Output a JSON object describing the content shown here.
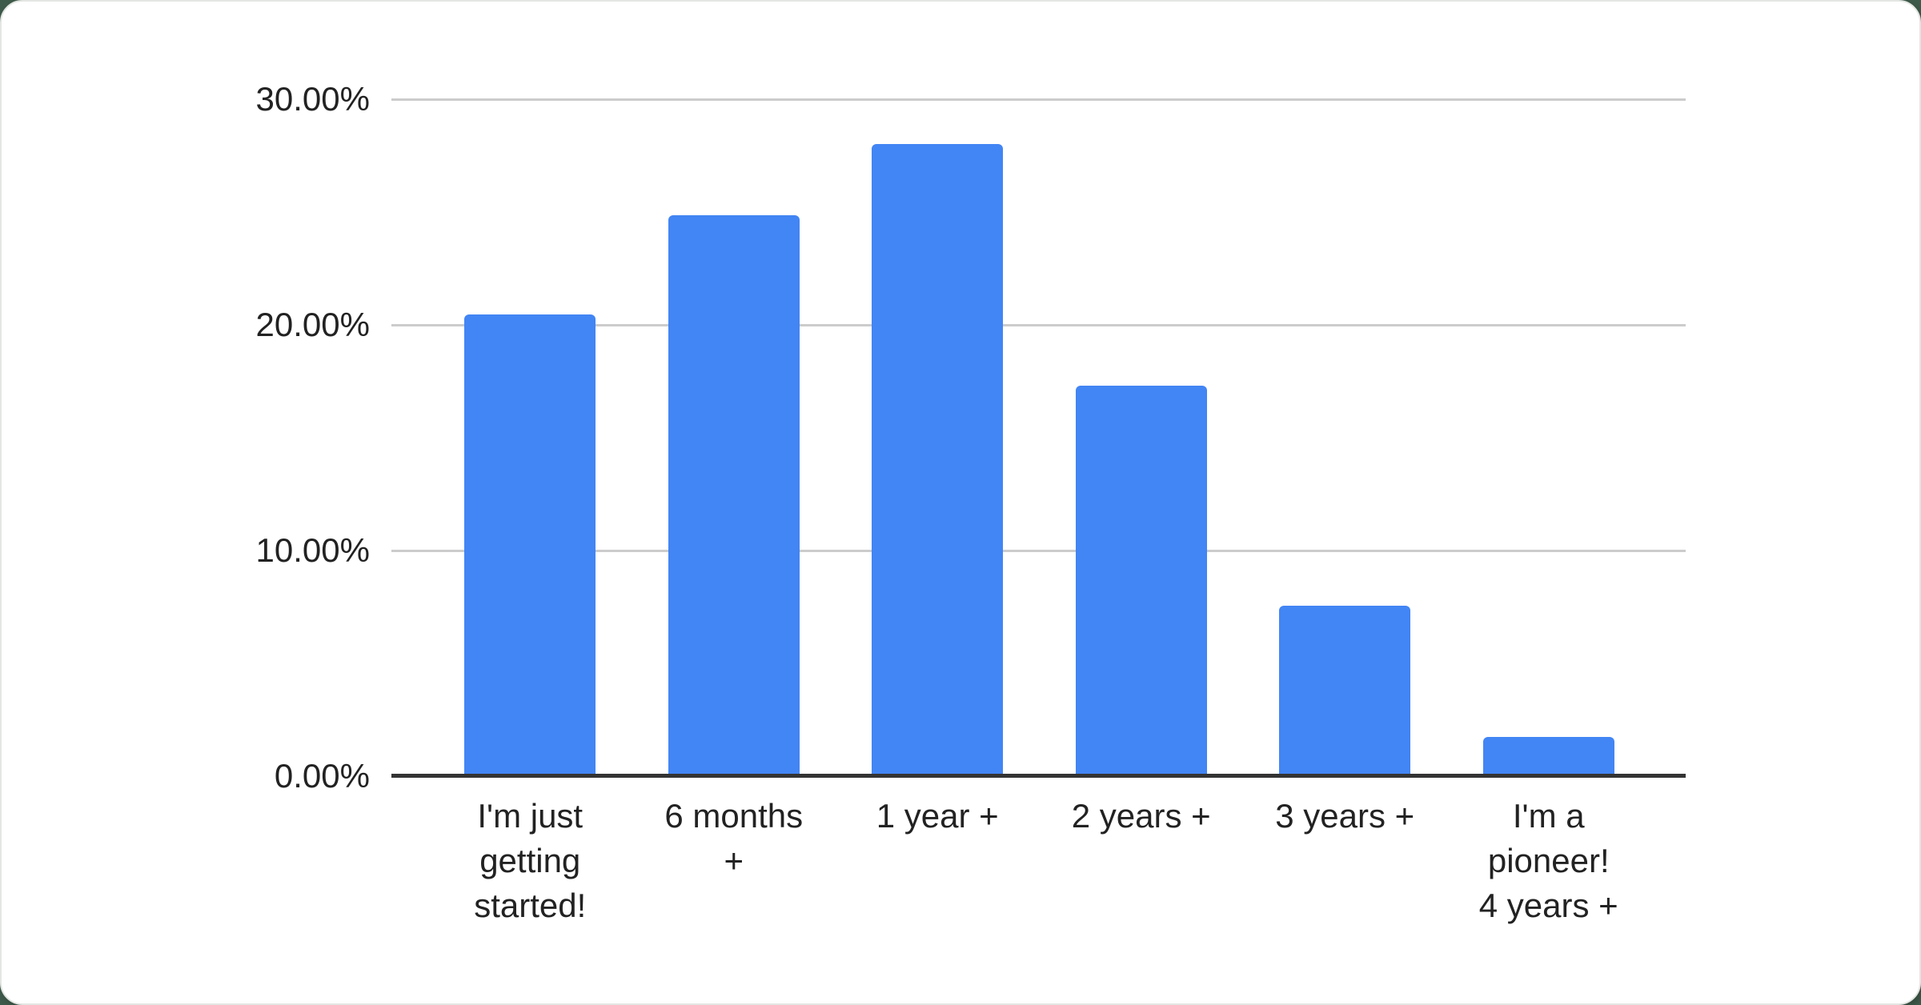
{
  "page": {
    "outer_background": "#3e5a4a",
    "card_background": "#ffffff"
  },
  "chart_data": {
    "type": "bar",
    "title": "",
    "categories": [
      "I'm just getting started!",
      "6 months +",
      "1 year +",
      "2 years +",
      "3 years +",
      "I'm a pioneer! 4 years +"
    ],
    "category_display_lines": [
      [
        "I'm just",
        "getting",
        "started!"
      ],
      [
        "6 months",
        "+"
      ],
      [
        "1 year +"
      ],
      [
        "2 years +"
      ],
      [
        "3 years +"
      ],
      [
        "I'm a",
        "pioneer!",
        "4 years +"
      ]
    ],
    "values": [
      20.45,
      24.85,
      28.0,
      17.3,
      7.55,
      1.75
    ],
    "value_unit": "%",
    "xlabel": "",
    "ylabel": "",
    "ylim": [
      0,
      30
    ],
    "yticks": [
      {
        "value": 0,
        "label": "0.00%"
      },
      {
        "value": 10,
        "label": "10.00%"
      },
      {
        "value": 20,
        "label": "20.00%"
      },
      {
        "value": 30,
        "label": "30.00%"
      }
    ],
    "grid": true,
    "legend": "none",
    "bar_color": "#4285f4",
    "gridline_color": "#cccccc",
    "axis_color": "#333333",
    "label_color": "#222222"
  }
}
